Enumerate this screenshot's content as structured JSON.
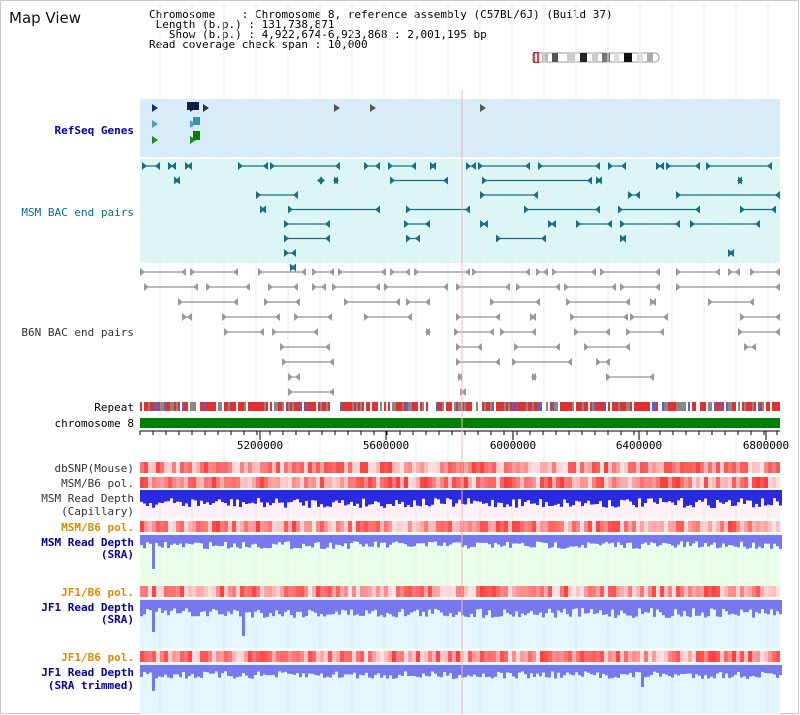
{
  "header": {
    "title": "Map View",
    "chromosome_key": "Chromosome",
    "chromosome_value": "Chromosome 8, reference assembly (C57BL/6J) (Build 37)",
    "length_key": "Length (b.p.)",
    "length_value": "131,738,871",
    "show_key": "Show (b.p.)",
    "show_value": "4,922,674-6,923,868 : 2,001,195 bp",
    "coverage_key": "Read coverage check span",
    "coverage_value": "10,000"
  },
  "tracks": {
    "refseq": "RefSeq Genes",
    "msm_bac": "MSM BAC end pairs",
    "b6n_bac": "B6N BAC end pairs",
    "repeat": "Repeat",
    "chromosome": "chromosome 8",
    "dbsnp": "dbSNP(Mouse)",
    "msm_b6_pol_1": "MSM/B6 pol.",
    "msm_read_depth_cap_1": "MSM Read Depth",
    "msm_read_depth_cap_2": "(Capillary)",
    "msm_b6_pol_2": "MSM/B6 pol.",
    "msm_read_depth_sra_1": "MSM Read Depth",
    "msm_read_depth_sra_2": "(SRA)",
    "jf1_b6_pol_1": "JF1/B6 pol.",
    "jf1_read_depth_sra_1": "JF1 Read Depth",
    "jf1_read_depth_sra_2": "(SRA)",
    "jf1_b6_pol_2": "JF1/B6 pol.",
    "jf1_read_depth_trim_1": "JF1 Read Depth",
    "jf1_read_depth_trim_2": "(SRA trimmed)"
  },
  "axis": {
    "ticks": [
      "5200000",
      "5600000",
      "6000000",
      "6400000",
      "6800000"
    ],
    "range_start": 4922674,
    "range_end": 6923868
  },
  "colors": {
    "refseq_bg": "#d7ecf7",
    "msm_bg": "#dcf6f6",
    "msm_track": "#1a6f86",
    "b6n_track": "#777777",
    "repeat_red": "#e03030",
    "chrom_green": "#008000",
    "depth_blue": "#2a2ae0",
    "depth_light": "#7878ee"
  }
}
